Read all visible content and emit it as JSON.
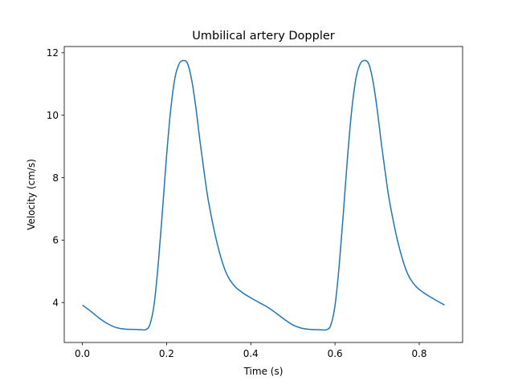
{
  "chart_data": {
    "type": "line",
    "title": "Umbilical artery Doppler",
    "xlabel": "Time (s)",
    "ylabel": "Velocity (cm/s)",
    "xlim": [
      -0.043,
      0.903
    ],
    "ylim": [
      2.72,
      12.2
    ],
    "xticks": [
      0.0,
      0.2,
      0.4,
      0.6,
      0.8
    ],
    "xtick_labels": [
      "0.0",
      "0.2",
      "0.4",
      "0.6",
      "0.8"
    ],
    "yticks": [
      4,
      6,
      8,
      10,
      12
    ],
    "ytick_labels": [
      "4",
      "6",
      "8",
      "10",
      "12"
    ],
    "grid": false,
    "legend": "none",
    "color": "#1f77b4",
    "series": [
      {
        "x": [
          0.0,
          0.02,
          0.04,
          0.06,
          0.08,
          0.1,
          0.12,
          0.14,
          0.15,
          0.16,
          0.17,
          0.18,
          0.19,
          0.2,
          0.21,
          0.22,
          0.23,
          0.24,
          0.25,
          0.26,
          0.27,
          0.28,
          0.29,
          0.3,
          0.32,
          0.34,
          0.36,
          0.38,
          0.4,
          0.42,
          0.44,
          0.46,
          0.48,
          0.5,
          0.52,
          0.54,
          0.56,
          0.58,
          0.59,
          0.6,
          0.61,
          0.62,
          0.63,
          0.64,
          0.65,
          0.66,
          0.67,
          0.68,
          0.69,
          0.7,
          0.71,
          0.72,
          0.73,
          0.75,
          0.77,
          0.79,
          0.81,
          0.83,
          0.86
        ],
        "y": [
          3.92,
          3.72,
          3.5,
          3.32,
          3.2,
          3.15,
          3.14,
          3.13,
          3.13,
          3.28,
          3.9,
          5.2,
          6.9,
          8.7,
          10.2,
          11.2,
          11.65,
          11.75,
          11.65,
          11.1,
          10.2,
          9.1,
          8.1,
          7.2,
          5.9,
          5.0,
          4.55,
          4.32,
          4.15,
          4.0,
          3.85,
          3.66,
          3.46,
          3.28,
          3.18,
          3.14,
          3.13,
          3.13,
          3.28,
          3.9,
          5.2,
          6.9,
          8.7,
          10.2,
          11.2,
          11.65,
          11.75,
          11.65,
          11.1,
          10.2,
          9.1,
          8.1,
          7.2,
          5.9,
          5.0,
          4.55,
          4.32,
          4.15,
          3.92
        ]
      }
    ]
  }
}
